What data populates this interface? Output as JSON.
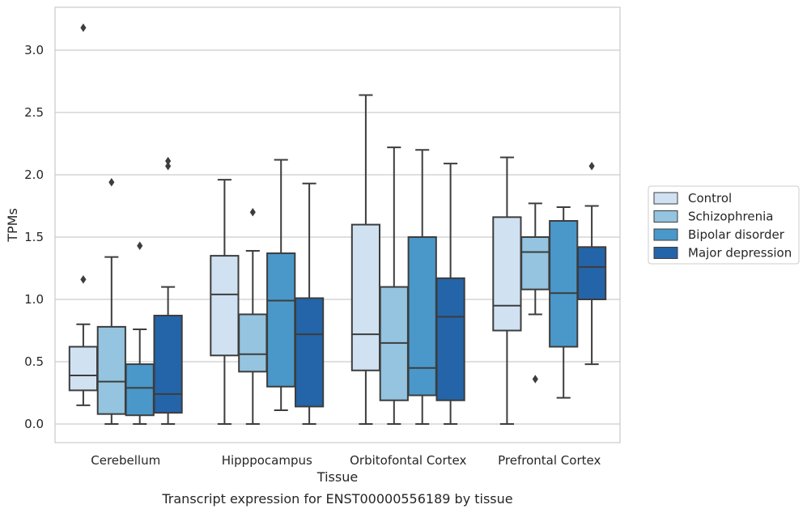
{
  "chart_data": {
    "type": "box",
    "xlabel": "Tissue",
    "ylabel": "TPMs",
    "caption": "Transcript expression for ENST00000556189 by tissue",
    "ylim": [
      -0.15,
      3.35
    ],
    "yticks": [
      0.0,
      0.5,
      1.0,
      1.5,
      2.0,
      2.5,
      3.0
    ],
    "ytick_labels": [
      "0.0",
      "0.5",
      "1.0",
      "1.5",
      "2.0",
      "2.5",
      "3.0"
    ],
    "grid": "horizontal",
    "legend_position": "right",
    "categories": [
      "Cerebellum",
      "Hipppocampus",
      "Orbitofontal Cortex",
      "Prefrontal Cortex"
    ],
    "series": [
      {
        "name": "Control",
        "color": "#d0e1f2",
        "boxes": [
          {
            "whislo": 0.15,
            "q1": 0.27,
            "med": 0.39,
            "q3": 0.62,
            "whishi": 0.8,
            "fliers": [
              1.16,
              3.18
            ]
          },
          {
            "whislo": 0.0,
            "q1": 0.55,
            "med": 1.04,
            "q3": 1.35,
            "whishi": 1.96,
            "fliers": []
          },
          {
            "whislo": 0.0,
            "q1": 0.43,
            "med": 0.72,
            "q3": 1.6,
            "whishi": 2.64,
            "fliers": []
          },
          {
            "whislo": 0.0,
            "q1": 0.75,
            "med": 0.95,
            "q3": 1.66,
            "whishi": 2.14,
            "fliers": []
          }
        ]
      },
      {
        "name": "Schizophrenia",
        "color": "#94c4df",
        "boxes": [
          {
            "whislo": 0.0,
            "q1": 0.08,
            "med": 0.34,
            "q3": 0.78,
            "whishi": 1.34,
            "fliers": [
              1.94
            ]
          },
          {
            "whislo": 0.0,
            "q1": 0.42,
            "med": 0.56,
            "q3": 0.88,
            "whishi": 1.39,
            "fliers": [
              1.7
            ]
          },
          {
            "whislo": 0.0,
            "q1": 0.19,
            "med": 0.65,
            "q3": 1.1,
            "whishi": 2.22,
            "fliers": []
          },
          {
            "whislo": 0.88,
            "q1": 1.08,
            "med": 1.38,
            "q3": 1.5,
            "whishi": 1.77,
            "fliers": [
              0.36
            ]
          }
        ]
      },
      {
        "name": "Bipolar disorder",
        "color": "#4a98c9",
        "boxes": [
          {
            "whislo": 0.0,
            "q1": 0.07,
            "med": 0.29,
            "q3": 0.48,
            "whishi": 0.76,
            "fliers": [
              1.43
            ]
          },
          {
            "whislo": 0.11,
            "q1": 0.3,
            "med": 0.99,
            "q3": 1.37,
            "whishi": 2.12,
            "fliers": []
          },
          {
            "whislo": 0.0,
            "q1": 0.23,
            "med": 0.45,
            "q3": 1.5,
            "whishi": 2.2,
            "fliers": []
          },
          {
            "whislo": 0.21,
            "q1": 0.62,
            "med": 1.05,
            "q3": 1.63,
            "whishi": 1.74,
            "fliers": []
          }
        ]
      },
      {
        "name": "Major depression",
        "color": "#2464a8",
        "boxes": [
          {
            "whislo": 0.0,
            "q1": 0.09,
            "med": 0.24,
            "q3": 0.87,
            "whishi": 1.1,
            "fliers": [
              2.07,
              2.11
            ]
          },
          {
            "whislo": 0.0,
            "q1": 0.14,
            "med": 0.72,
            "q3": 1.01,
            "whishi": 1.93,
            "fliers": []
          },
          {
            "whislo": 0.0,
            "q1": 0.19,
            "med": 0.86,
            "q3": 1.17,
            "whishi": 2.09,
            "fliers": []
          },
          {
            "whislo": 0.48,
            "q1": 1.0,
            "med": 1.26,
            "q3": 1.42,
            "whishi": 1.75,
            "fliers": [
              2.07
            ]
          }
        ]
      }
    ]
  }
}
